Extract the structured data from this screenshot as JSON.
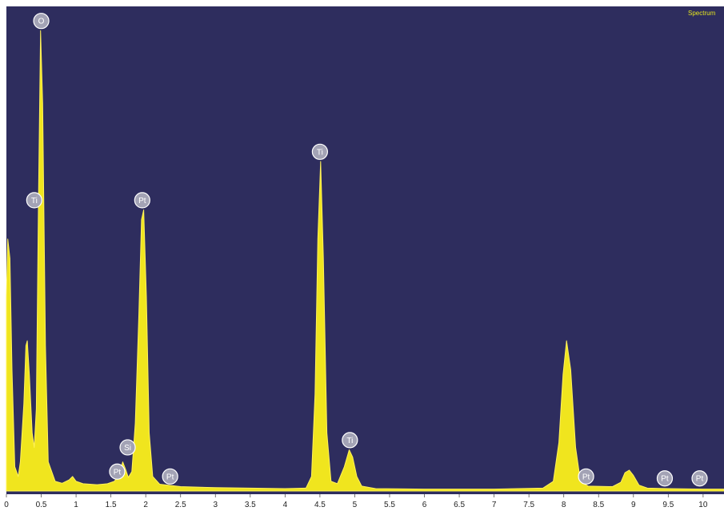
{
  "chart_data": {
    "type": "area",
    "legend": "Spectrum",
    "legend_position": "top-right",
    "xlim": [
      0,
      10.3
    ],
    "ylim": [
      0,
      100
    ],
    "grid": false,
    "x_tick_labels": [
      "0",
      "0.5",
      "1",
      "1.5",
      "2",
      "2.5",
      "3",
      "3.5",
      "4",
      "4.5",
      "5",
      "5.5",
      "6",
      "6.5",
      "7",
      "7.5",
      "8",
      "8.5",
      "9",
      "9.5",
      "10"
    ],
    "series": [
      {
        "points": [
          [
            0.0,
            40
          ],
          [
            0.02,
            52
          ],
          [
            0.05,
            48
          ],
          [
            0.08,
            25
          ],
          [
            0.12,
            5
          ],
          [
            0.17,
            3
          ],
          [
            0.2,
            6
          ],
          [
            0.25,
            18
          ],
          [
            0.28,
            30
          ],
          [
            0.3,
            31
          ],
          [
            0.33,
            24
          ],
          [
            0.37,
            12
          ],
          [
            0.4,
            9
          ],
          [
            0.43,
            17
          ],
          [
            0.46,
            60
          ],
          [
            0.49,
            95
          ],
          [
            0.52,
            80
          ],
          [
            0.56,
            30
          ],
          [
            0.6,
            6
          ],
          [
            0.7,
            2
          ],
          [
            0.8,
            1.6
          ],
          [
            0.9,
            2.3
          ],
          [
            0.95,
            3
          ],
          [
            1.0,
            2
          ],
          [
            1.1,
            1.5
          ],
          [
            1.3,
            1.3
          ],
          [
            1.45,
            1.5
          ],
          [
            1.55,
            2
          ],
          [
            1.62,
            3.5
          ],
          [
            1.67,
            6
          ],
          [
            1.71,
            4.5
          ],
          [
            1.75,
            2.8
          ],
          [
            1.8,
            4
          ],
          [
            1.85,
            14
          ],
          [
            1.9,
            36
          ],
          [
            1.94,
            56
          ],
          [
            1.97,
            58
          ],
          [
            2.01,
            40
          ],
          [
            2.05,
            12
          ],
          [
            2.1,
            3
          ],
          [
            2.2,
            1.4
          ],
          [
            2.5,
            0.9
          ],
          [
            3.0,
            0.7
          ],
          [
            3.5,
            0.6
          ],
          [
            4.0,
            0.5
          ],
          [
            4.3,
            0.6
          ],
          [
            4.38,
            3
          ],
          [
            4.43,
            20
          ],
          [
            4.47,
            52
          ],
          [
            4.51,
            68
          ],
          [
            4.55,
            48
          ],
          [
            4.6,
            12
          ],
          [
            4.66,
            2
          ],
          [
            4.75,
            1.5
          ],
          [
            4.85,
            5
          ],
          [
            4.92,
            8.5
          ],
          [
            4.97,
            7
          ],
          [
            5.03,
            3
          ],
          [
            5.1,
            1
          ],
          [
            5.3,
            0.5
          ],
          [
            6.0,
            0.4
          ],
          [
            7.0,
            0.4
          ],
          [
            7.7,
            0.6
          ],
          [
            7.85,
            2
          ],
          [
            7.93,
            10
          ],
          [
            7.99,
            24
          ],
          [
            8.04,
            31
          ],
          [
            8.1,
            25
          ],
          [
            8.17,
            9
          ],
          [
            8.24,
            2
          ],
          [
            8.35,
            1
          ],
          [
            8.7,
            0.9
          ],
          [
            8.82,
            1.8
          ],
          [
            8.88,
            3.8
          ],
          [
            8.94,
            4.3
          ],
          [
            9.0,
            3.2
          ],
          [
            9.08,
            1.2
          ],
          [
            9.2,
            0.6
          ],
          [
            9.5,
            0.5
          ],
          [
            10.0,
            0.4
          ],
          [
            10.3,
            0.4
          ]
        ]
      }
    ],
    "peak_labels": [
      {
        "label": "O",
        "x": 0.5,
        "y": 97
      },
      {
        "label": "Ti",
        "x": 0.4,
        "y": 60
      },
      {
        "label": "Pt",
        "x": 1.95,
        "y": 60
      },
      {
        "label": "Ti",
        "x": 4.5,
        "y": 70
      },
      {
        "label": "Si",
        "x": 1.74,
        "y": 9
      },
      {
        "label": "Pt",
        "x": 1.59,
        "y": 4
      },
      {
        "label": "Pt",
        "x": 2.35,
        "y": 3
      },
      {
        "label": "Ti",
        "x": 4.93,
        "y": 10.5
      },
      {
        "label": "Pt",
        "x": 8.32,
        "y": 3
      },
      {
        "label": "Pt",
        "x": 9.45,
        "y": 2.6
      },
      {
        "label": "Pt",
        "x": 9.95,
        "y": 2.6
      }
    ],
    "colors": {
      "background": "#2e2d5e",
      "fill": "#f0e51e",
      "stroke": "#fff259",
      "legend_text": "#e6e61e",
      "label_circle": "#a3a3b5"
    }
  }
}
